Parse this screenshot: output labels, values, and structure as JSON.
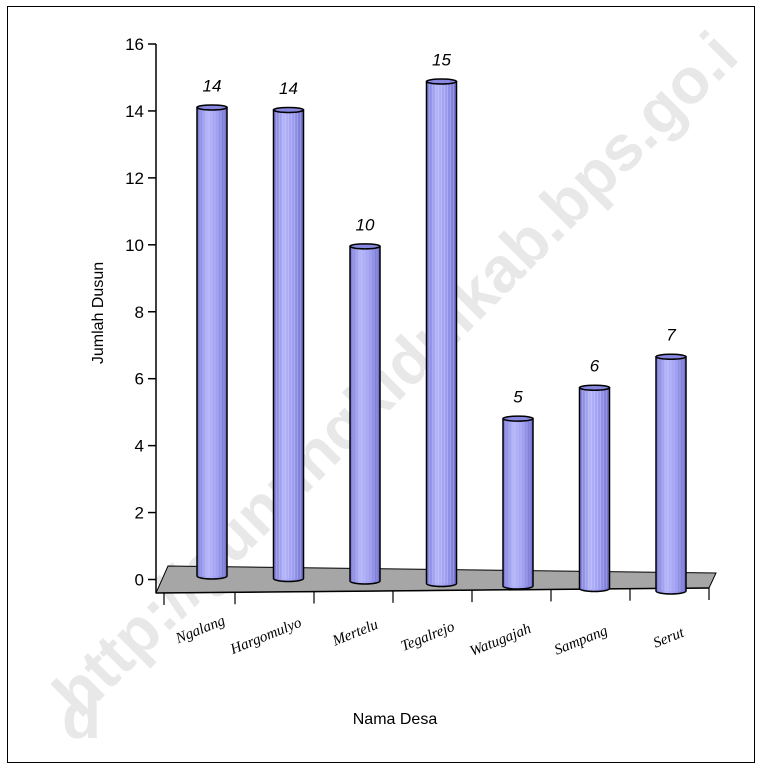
{
  "chart_data": {
    "type": "bar",
    "categories": [
      "Ngalang",
      "Hargomulyo",
      "Mertelu",
      "Tegalrejo",
      "Watugajah",
      "Sampang",
      "Serut"
    ],
    "values": [
      14,
      14,
      10,
      15,
      5,
      6,
      7
    ],
    "data_labels": [
      "14",
      "14",
      "10",
      "15",
      "5",
      "6",
      "7"
    ],
    "xlabel": "Nama Desa",
    "ylabel": "Jumlah Dusun",
    "ylim": [
      0,
      16
    ],
    "yticks": [
      "0",
      "2",
      "4",
      "6",
      "8",
      "10",
      "12",
      "14",
      "16"
    ],
    "grid": false,
    "legend": "none",
    "bar_color": "#9c9cf4",
    "floor_color": "#a6a6a6"
  },
  "watermark": {
    "line1": "http://gunungkidulkab.bps.go.i",
    "line2": "d"
  }
}
